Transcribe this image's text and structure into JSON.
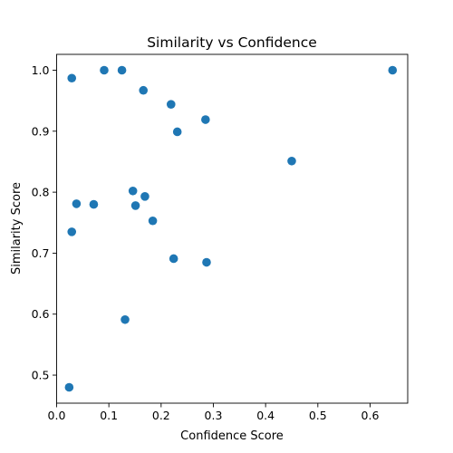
{
  "chart_data": {
    "type": "scatter",
    "title": "Similarity vs Confidence",
    "xlabel": "Confidence Score",
    "ylabel": "Similarity Score",
    "xlim": [
      0.0,
      0.672
    ],
    "ylim": [
      0.454,
      1.026
    ],
    "xticks": [
      0.0,
      0.1,
      0.2,
      0.3,
      0.4,
      0.5,
      0.6
    ],
    "xtick_labels": [
      "0.0",
      "0.1",
      "0.2",
      "0.3",
      "0.4",
      "0.5",
      "0.6"
    ],
    "yticks": [
      0.5,
      0.6,
      0.7,
      0.8,
      0.9,
      1.0
    ],
    "ytick_labels": [
      "0.5",
      "0.6",
      "0.7",
      "0.8",
      "0.9",
      "1.0"
    ],
    "grid": false,
    "legend": false,
    "marker_color": "#1f77b4",
    "points": [
      {
        "x": 0.029,
        "y": 0.987
      },
      {
        "x": 0.091,
        "y": 1.0
      },
      {
        "x": 0.125,
        "y": 1.0
      },
      {
        "x": 0.166,
        "y": 0.967
      },
      {
        "x": 0.219,
        "y": 0.944
      },
      {
        "x": 0.231,
        "y": 0.899
      },
      {
        "x": 0.285,
        "y": 0.919
      },
      {
        "x": 0.643,
        "y": 1.0
      },
      {
        "x": 0.45,
        "y": 0.851
      },
      {
        "x": 0.146,
        "y": 0.802
      },
      {
        "x": 0.169,
        "y": 0.793
      },
      {
        "x": 0.151,
        "y": 0.778
      },
      {
        "x": 0.038,
        "y": 0.781
      },
      {
        "x": 0.071,
        "y": 0.78
      },
      {
        "x": 0.184,
        "y": 0.753
      },
      {
        "x": 0.029,
        "y": 0.735
      },
      {
        "x": 0.224,
        "y": 0.691
      },
      {
        "x": 0.287,
        "y": 0.685
      },
      {
        "x": 0.131,
        "y": 0.591
      },
      {
        "x": 0.024,
        "y": 0.48
      }
    ]
  }
}
